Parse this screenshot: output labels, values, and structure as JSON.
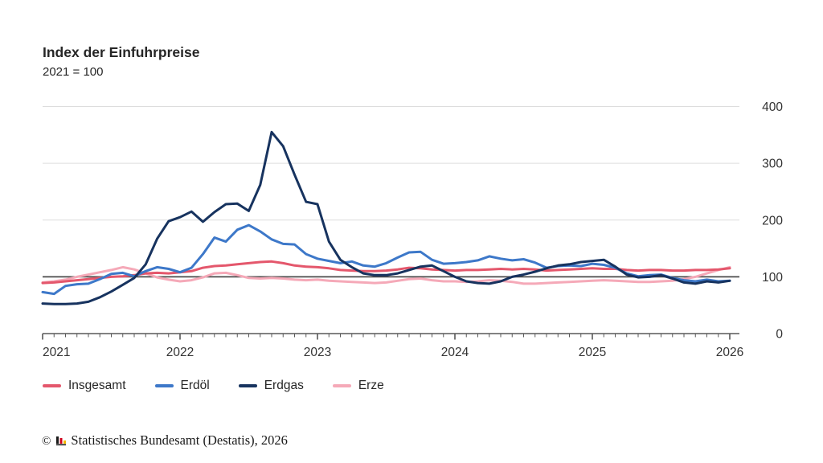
{
  "header": {
    "title": "Index der Einfuhrpreise",
    "subtitle": "2021 = 100"
  },
  "chart_data": {
    "type": "line",
    "title": "Index der Einfuhrpreise",
    "subtitle": "2021 = 100",
    "x_unit": "month",
    "x_start": "2021-01",
    "x_end": "2026-01",
    "x_tick_labels": [
      "2021",
      "2022",
      "2023",
      "2024",
      "2025",
      "2026"
    ],
    "y_ticks": [
      0,
      100,
      200,
      300,
      400
    ],
    "ylim": [
      0,
      400
    ],
    "reference_line": 100,
    "grid": true,
    "legend_position": "bottom",
    "axis_color": "#595959",
    "grid_color": "#dddddd",
    "reference_color": "#4a4a4a",
    "tick_text_color": "#333333",
    "series": [
      {
        "name": "Insgesamt",
        "color": "#e4576c",
        "values": [
          89,
          90,
          92,
          94,
          96,
          98,
          100,
          101,
          103,
          106,
          107,
          106,
          108,
          110,
          116,
          119,
          120,
          122,
          124,
          126,
          127,
          124,
          120,
          118,
          117,
          115,
          112,
          111,
          110,
          110,
          111,
          113,
          116,
          115,
          113,
          112,
          111,
          112,
          112,
          113,
          114,
          113,
          114,
          113,
          111,
          112,
          113,
          114,
          115,
          114,
          114,
          112,
          111,
          112,
          112,
          111,
          111,
          112,
          112,
          113,
          115
        ]
      },
      {
        "name": "Erdöl",
        "color": "#3d78c9",
        "values": [
          73,
          70,
          84,
          87,
          88,
          96,
          105,
          107,
          101,
          110,
          117,
          114,
          108,
          116,
          140,
          169,
          162,
          183,
          191,
          180,
          166,
          158,
          157,
          140,
          132,
          128,
          124,
          127,
          120,
          118,
          124,
          134,
          143,
          144,
          130,
          123,
          124,
          126,
          129,
          136,
          132,
          129,
          131,
          125,
          116,
          119,
          120,
          119,
          123,
          121,
          116,
          106,
          101,
          103,
          104,
          98,
          94,
          92,
          95,
          92,
          93
        ]
      },
      {
        "name": "Erdgas",
        "color": "#17335f",
        "values": [
          53,
          52,
          52,
          53,
          56,
          64,
          74,
          86,
          98,
          122,
          167,
          198,
          205,
          215,
          197,
          214,
          228,
          229,
          216,
          262,
          355,
          330,
          280,
          232,
          228,
          162,
          130,
          117,
          106,
          103,
          103,
          106,
          112,
          118,
          120,
          110,
          100,
          92,
          89,
          88,
          92,
          100,
          104,
          109,
          115,
          120,
          122,
          126,
          128,
          130,
          118,
          104,
          99,
          100,
          103,
          97,
          90,
          88,
          92,
          90,
          93
        ]
      },
      {
        "name": "Erze",
        "color": "#f5a9b8",
        "values": [
          90,
          92,
          95,
          100,
          104,
          108,
          112,
          117,
          113,
          106,
          99,
          95,
          92,
          94,
          99,
          106,
          107,
          103,
          98,
          97,
          98,
          97,
          95,
          94,
          95,
          93,
          92,
          91,
          90,
          89,
          90,
          93,
          96,
          97,
          94,
          92,
          92,
          91,
          92,
          94,
          93,
          91,
          88,
          88,
          89,
          90,
          91,
          92,
          93,
          94,
          93,
          92,
          91,
          91,
          92,
          93,
          96,
          100,
          106,
          112,
          117
        ]
      }
    ]
  },
  "legend": {
    "items": [
      "Insgesamt",
      "Erdöl",
      "Erdgas",
      "Erze"
    ]
  },
  "footer": {
    "copyright": "©",
    "source": "Statistisches Bundesamt (Destatis), 2026",
    "logo_colors": [
      "#1a1a1a",
      "#d0021b",
      "#f5b800"
    ]
  }
}
